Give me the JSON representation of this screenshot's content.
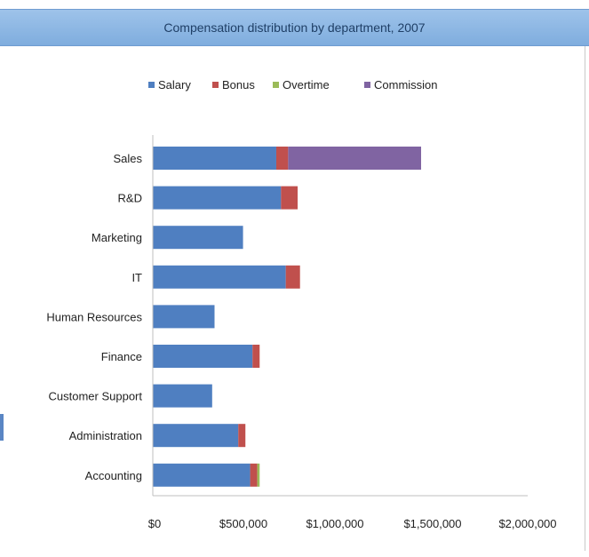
{
  "window": {
    "title": "Compensation distribution by department, 2007"
  },
  "chart_data": {
    "type": "bar",
    "orientation": "horizontal",
    "stacked": true,
    "title": "Compensation distribution by department, 2007",
    "categories": [
      "Sales",
      "R&D",
      "Marketing",
      "IT",
      "Human Resources",
      "Finance",
      "Customer Support",
      "Administration",
      "Accounting"
    ],
    "series": [
      {
        "name": "Salary",
        "color": "#4f7fc1",
        "values": [
          520000,
          540000,
          380000,
          560000,
          260000,
          420000,
          250000,
          360000,
          410000
        ]
      },
      {
        "name": "Bonus",
        "color": "#c0504d",
        "values": [
          50000,
          70000,
          0,
          60000,
          0,
          30000,
          0,
          30000,
          30000
        ]
      },
      {
        "name": "Overtime",
        "color": "#9bbb59",
        "values": [
          0,
          0,
          0,
          0,
          0,
          0,
          0,
          0,
          10000
        ]
      },
      {
        "name": "Commission",
        "color": "#8064a2",
        "values": [
          560000,
          0,
          0,
          0,
          0,
          0,
          0,
          0,
          0
        ]
      }
    ],
    "xaxis_tick_labels": [
      "$0",
      "$500,000",
      "$1,000,000",
      "$1,500,000",
      "$2,000,000"
    ],
    "xlim": [
      0,
      1500000
    ],
    "legend_position": "top",
    "grid": false
  }
}
